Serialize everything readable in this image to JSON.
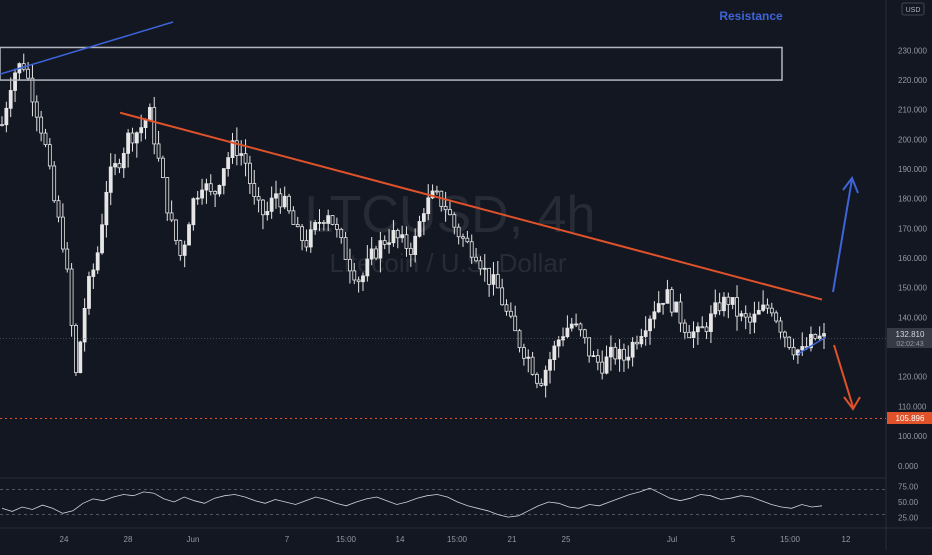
{
  "currency_badge": "USD",
  "watermark": {
    "symbol": "LTCUSD, 4h",
    "description": "Litecoin / U.S. Dollar"
  },
  "annotations": {
    "resistance": "Resistance"
  },
  "price_badges": {
    "last_price": "132.810",
    "countdown": "02:02:43",
    "support_level": "105.896"
  },
  "colors": {
    "background": "#131722",
    "candle": "#e6e6e6",
    "trendline_down": "#e0522a",
    "trendline_up": "#3d64d8",
    "resistance_label": "#3d64d8",
    "support_line": "#e0522a",
    "rsi_line": "#d1d4dc",
    "box_border": "#b2b5be"
  },
  "chart_data": {
    "type": "candlestick",
    "symbol": "LTCUSD",
    "interval": "4h",
    "price_axis": {
      "ticks": [
        "230.000",
        "220.000",
        "210.000",
        "200.000",
        "190.000",
        "180.000",
        "170.000",
        "160.000",
        "150.000",
        "140.000",
        "120.000",
        "110.000",
        "100.000",
        "0.000"
      ],
      "visible_range": [
        100,
        235
      ]
    },
    "time_axis": {
      "ticks": [
        "24",
        "28",
        "Jun",
        "7",
        "15:00",
        "14",
        "15:00",
        "21",
        "25",
        "Jul",
        "5",
        "15:00",
        "12"
      ]
    },
    "price_path": [
      [
        0,
        205
      ],
      [
        2,
        222
      ],
      [
        4,
        226
      ],
      [
        6,
        214
      ],
      [
        8,
        200
      ],
      [
        10,
        178
      ],
      [
        12,
        162
      ],
      [
        14,
        120
      ],
      [
        16,
        148
      ],
      [
        18,
        160
      ],
      [
        20,
        186
      ],
      [
        22,
        192
      ],
      [
        24,
        201
      ],
      [
        26,
        203
      ],
      [
        28,
        209
      ],
      [
        30,
        190
      ],
      [
        32,
        172
      ],
      [
        34,
        160
      ],
      [
        36,
        178
      ],
      [
        38,
        186
      ],
      [
        40,
        180
      ],
      [
        42,
        191
      ],
      [
        44,
        198
      ],
      [
        46,
        194
      ],
      [
        48,
        178
      ],
      [
        50,
        174
      ],
      [
        52,
        182
      ],
      [
        54,
        177
      ],
      [
        56,
        168
      ],
      [
        58,
        165
      ],
      [
        60,
        172
      ],
      [
        62,
        176
      ],
      [
        64,
        166
      ],
      [
        66,
        158
      ],
      [
        68,
        152
      ],
      [
        70,
        160
      ],
      [
        72,
        165
      ],
      [
        74,
        168
      ],
      [
        76,
        165
      ],
      [
        78,
        163
      ],
      [
        80,
        177
      ],
      [
        82,
        181
      ],
      [
        84,
        178
      ],
      [
        86,
        170
      ],
      [
        88,
        165
      ],
      [
        90,
        162
      ],
      [
        92,
        154
      ],
      [
        94,
        150
      ],
      [
        96,
        140
      ],
      [
        98,
        132
      ],
      [
        100,
        126
      ],
      [
        102,
        118
      ],
      [
        104,
        126
      ],
      [
        106,
        134
      ],
      [
        108,
        138
      ],
      [
        110,
        134
      ],
      [
        112,
        126
      ],
      [
        114,
        124
      ],
      [
        116,
        128
      ],
      [
        118,
        126
      ],
      [
        120,
        132
      ],
      [
        122,
        138
      ],
      [
        124,
        144
      ],
      [
        126,
        148
      ],
      [
        128,
        142
      ],
      [
        130,
        136
      ],
      [
        132,
        134
      ],
      [
        134,
        138
      ],
      [
        136,
        144
      ],
      [
        138,
        146
      ],
      [
        140,
        140
      ],
      [
        142,
        138
      ],
      [
        144,
        142
      ],
      [
        146,
        144
      ],
      [
        148,
        136
      ],
      [
        150,
        130
      ],
      [
        152,
        128
      ],
      [
        154,
        133
      ],
      [
        156,
        132.8
      ]
    ],
    "drawings": {
      "resistance_zone": {
        "price_low": 220,
        "price_high": 231,
        "label": "Resistance"
      },
      "descending_trendline": {
        "from": [
          28,
          209
        ],
        "to": [
          150,
          146
        ]
      },
      "ascending_trendline_top": {
        "from": [
          0,
          222
        ],
        "to": [
          30,
          233
        ]
      },
      "small_support_line": {
        "from": [
          150,
          126
        ],
        "to": [
          156,
          131
        ]
      },
      "support_level": 105.896,
      "last_price": 132.81,
      "arrow_up": {
        "from": [
          154,
          146
        ],
        "to": [
          158,
          183
        ]
      },
      "arrow_down": {
        "from": [
          154,
          131
        ],
        "to": [
          160,
          109
        ]
      }
    },
    "rsi": {
      "ticks": [
        "75.00",
        "50.00",
        "25.00"
      ],
      "range": [
        15,
        85
      ],
      "bands": [
        70,
        30
      ],
      "values": [
        40,
        35,
        42,
        38,
        45,
        40,
        32,
        36,
        48,
        55,
        52,
        58,
        62,
        60,
        66,
        64,
        55,
        50,
        58,
        52,
        48,
        56,
        60,
        62,
        58,
        52,
        48,
        54,
        50,
        46,
        52,
        58,
        54,
        48,
        44,
        50,
        55,
        58,
        52,
        46,
        50,
        56,
        60,
        62,
        58,
        50,
        44,
        40,
        36,
        30,
        26,
        28,
        36,
        44,
        50,
        48,
        42,
        40,
        46,
        44,
        50,
        56,
        62,
        66,
        72,
        64,
        56,
        52,
        56,
        62,
        60,
        54,
        56,
        60,
        58,
        52,
        46,
        42,
        40,
        46,
        42,
        44
      ]
    }
  }
}
